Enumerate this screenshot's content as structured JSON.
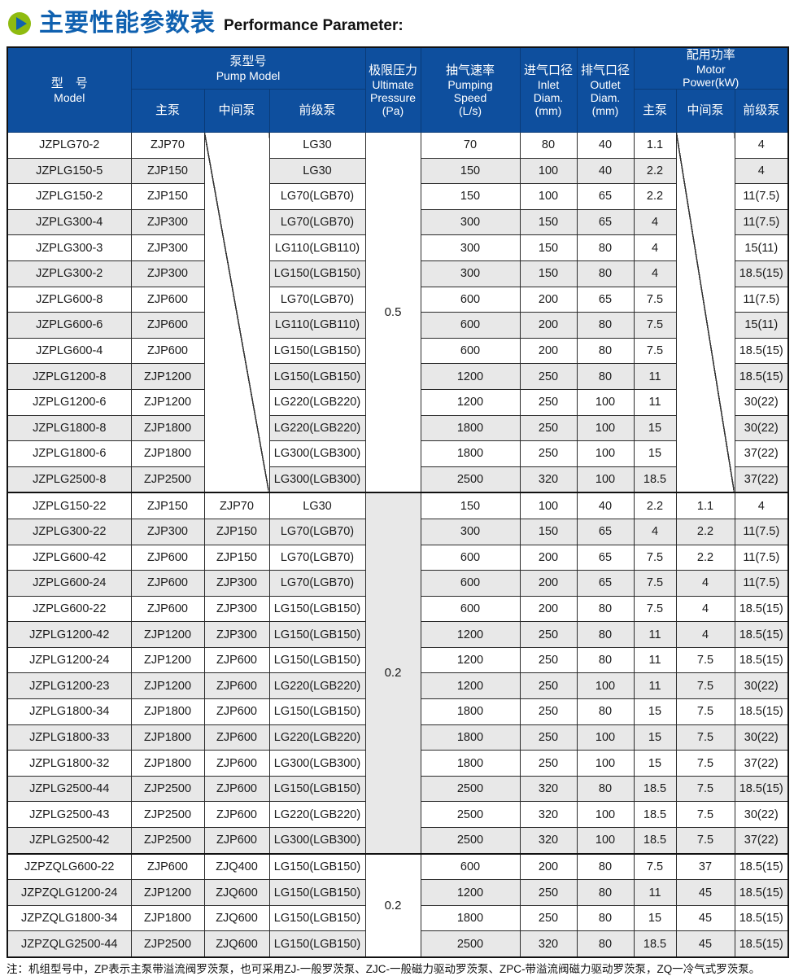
{
  "title": {
    "zh": "主要性能参数表",
    "en": "Performance Parameter:"
  },
  "colors": {
    "header_bg": "#0E4F9E",
    "row_alt": "#E8E8E8",
    "border": "#1A1A1A",
    "title_blue": "#1061B0",
    "icon_green": "#8FBB10"
  },
  "header": {
    "model": {
      "zh": "型　号",
      "en": "Model"
    },
    "pump_model": {
      "zh": "泵型号",
      "en": "Pump Model",
      "sub": [
        "主泵",
        "中间泵",
        "前级泵"
      ]
    },
    "ultimate_pressure": {
      "zh": "极限压力",
      "en_lines": [
        "Ultimate",
        "Pressure"
      ],
      "unit": "(Pa)"
    },
    "pumping_speed": {
      "zh": "抽气速率",
      "en_lines": [
        "Pumping",
        "Speed"
      ],
      "unit": "(L/s)"
    },
    "inlet": {
      "zh": "进气口径",
      "en_lines": [
        "Inlet",
        "Diam."
      ],
      "unit": "(mm)"
    },
    "outlet": {
      "zh": "排气口径",
      "en_lines": [
        "Outlet",
        "Diam."
      ],
      "unit": "(mm)"
    },
    "motor_power": {
      "zh": "配用功率",
      "en_lines": [
        "Motor",
        "Power(kW)"
      ],
      "sub": [
        "主泵",
        "中间泵",
        "前级泵"
      ]
    }
  },
  "groups": [
    {
      "pressure": "0.5",
      "pressure_shaded": false,
      "mid_pump_blank": true,
      "rows": [
        {
          "model": "JZPLG70-2",
          "main": "ZJP70",
          "fore": "LG30",
          "speed": "70",
          "inlet": "80",
          "outlet": "40",
          "p_main": "1.1",
          "p_fore": "4"
        },
        {
          "model": "JZPLG150-5",
          "main": "ZJP150",
          "fore": "LG30",
          "speed": "150",
          "inlet": "100",
          "outlet": "40",
          "p_main": "2.2",
          "p_fore": "4"
        },
        {
          "model": "JZPLG150-2",
          "main": "ZJP150",
          "fore": "LG70(LGB70)",
          "speed": "150",
          "inlet": "100",
          "outlet": "65",
          "p_main": "2.2",
          "p_fore": "11(7.5)"
        },
        {
          "model": "JZPLG300-4",
          "main": "ZJP300",
          "fore": "LG70(LGB70)",
          "speed": "300",
          "inlet": "150",
          "outlet": "65",
          "p_main": "4",
          "p_fore": "11(7.5)"
        },
        {
          "model": "JZPLG300-3",
          "main": "ZJP300",
          "fore": "LG110(LGB110)",
          "speed": "300",
          "inlet": "150",
          "outlet": "80",
          "p_main": "4",
          "p_fore": "15(11)"
        },
        {
          "model": "JZPLG300-2",
          "main": "ZJP300",
          "fore": "LG150(LGB150)",
          "speed": "300",
          "inlet": "150",
          "outlet": "80",
          "p_main": "4",
          "p_fore": "18.5(15)"
        },
        {
          "model": "JZPLG600-8",
          "main": "ZJP600",
          "fore": "LG70(LGB70)",
          "speed": "600",
          "inlet": "200",
          "outlet": "65",
          "p_main": "7.5",
          "p_fore": "11(7.5)"
        },
        {
          "model": "JZPLG600-6",
          "main": "ZJP600",
          "fore": "LG110(LGB110)",
          "speed": "600",
          "inlet": "200",
          "outlet": "80",
          "p_main": "7.5",
          "p_fore": "15(11)"
        },
        {
          "model": "JZPLG600-4",
          "main": "ZJP600",
          "fore": "LG150(LGB150)",
          "speed": "600",
          "inlet": "200",
          "outlet": "80",
          "p_main": "7.5",
          "p_fore": "18.5(15)"
        },
        {
          "model": "JZPLG1200-8",
          "main": "ZJP1200",
          "fore": "LG150(LGB150)",
          "speed": "1200",
          "inlet": "250",
          "outlet": "80",
          "p_main": "11",
          "p_fore": "18.5(15)"
        },
        {
          "model": "JZPLG1200-6",
          "main": "ZJP1200",
          "fore": "LG220(LGB220)",
          "speed": "1200",
          "inlet": "250",
          "outlet": "100",
          "p_main": "11",
          "p_fore": "30(22)"
        },
        {
          "model": "JZPLG1800-8",
          "main": "ZJP1800",
          "fore": "LG220(LGB220)",
          "speed": "1800",
          "inlet": "250",
          "outlet": "100",
          "p_main": "15",
          "p_fore": "30(22)"
        },
        {
          "model": "JZPLG1800-6",
          "main": "ZJP1800",
          "fore": "LG300(LGB300)",
          "speed": "1800",
          "inlet": "250",
          "outlet": "100",
          "p_main": "15",
          "p_fore": "37(22)"
        },
        {
          "model": "JZPLG2500-8",
          "main": "ZJP2500",
          "fore": "LG300(LGB300)",
          "speed": "2500",
          "inlet": "320",
          "outlet": "100",
          "p_main": "18.5",
          "p_fore": "37(22)"
        }
      ]
    },
    {
      "pressure": "0.2",
      "pressure_shaded": true,
      "mid_pump_blank": false,
      "rows": [
        {
          "model": "JZPLG150-22",
          "main": "ZJP150",
          "mid": "ZJP70",
          "fore": "LG30",
          "speed": "150",
          "inlet": "100",
          "outlet": "40",
          "p_main": "2.2",
          "p_mid": "1.1",
          "p_fore": "4"
        },
        {
          "model": "JZPLG300-22",
          "main": "ZJP300",
          "mid": "ZJP150",
          "fore": "LG70(LGB70)",
          "speed": "300",
          "inlet": "150",
          "outlet": "65",
          "p_main": "4",
          "p_mid": "2.2",
          "p_fore": "11(7.5)"
        },
        {
          "model": "JZPLG600-42",
          "main": "ZJP600",
          "mid": "ZJP150",
          "fore": "LG70(LGB70)",
          "speed": "600",
          "inlet": "200",
          "outlet": "65",
          "p_main": "7.5",
          "p_mid": "2.2",
          "p_fore": "11(7.5)"
        },
        {
          "model": "JZPLG600-24",
          "main": "ZJP600",
          "mid": "ZJP300",
          "fore": "LG70(LGB70)",
          "speed": "600",
          "inlet": "200",
          "outlet": "65",
          "p_main": "7.5",
          "p_mid": "4",
          "p_fore": "11(7.5)"
        },
        {
          "model": "JZPLG600-22",
          "main": "ZJP600",
          "mid": "ZJP300",
          "fore": "LG150(LGB150)",
          "speed": "600",
          "inlet": "200",
          "outlet": "80",
          "p_main": "7.5",
          "p_mid": "4",
          "p_fore": "18.5(15)"
        },
        {
          "model": "JZPLG1200-42",
          "main": "ZJP1200",
          "mid": "ZJP300",
          "fore": "LG150(LGB150)",
          "speed": "1200",
          "inlet": "250",
          "outlet": "80",
          "p_main": "11",
          "p_mid": "4",
          "p_fore": "18.5(15)"
        },
        {
          "model": "JZPLG1200-24",
          "main": "ZJP1200",
          "mid": "ZJP600",
          "fore": "LG150(LGB150)",
          "speed": "1200",
          "inlet": "250",
          "outlet": "80",
          "p_main": "11",
          "p_mid": "7.5",
          "p_fore": "18.5(15)"
        },
        {
          "model": "JZPLG1200-23",
          "main": "ZJP1200",
          "mid": "ZJP600",
          "fore": "LG220(LGB220)",
          "speed": "1200",
          "inlet": "250",
          "outlet": "100",
          "p_main": "11",
          "p_mid": "7.5",
          "p_fore": "30(22)"
        },
        {
          "model": "JZPLG1800-34",
          "main": "ZJP1800",
          "mid": "ZJP600",
          "fore": "LG150(LGB150)",
          "speed": "1800",
          "inlet": "250",
          "outlet": "80",
          "p_main": "15",
          "p_mid": "7.5",
          "p_fore": "18.5(15)"
        },
        {
          "model": "JZPLG1800-33",
          "main": "ZJP1800",
          "mid": "ZJP600",
          "fore": "LG220(LGB220)",
          "speed": "1800",
          "inlet": "250",
          "outlet": "100",
          "p_main": "15",
          "p_mid": "7.5",
          "p_fore": "30(22)"
        },
        {
          "model": "JZPLG1800-32",
          "main": "ZJP1800",
          "mid": "ZJP600",
          "fore": "LG300(LGB300)",
          "speed": "1800",
          "inlet": "250",
          "outlet": "100",
          "p_main": "15",
          "p_mid": "7.5",
          "p_fore": "37(22)"
        },
        {
          "model": "JZPLG2500-44",
          "main": "ZJP2500",
          "mid": "ZJP600",
          "fore": "LG150(LGB150)",
          "speed": "2500",
          "inlet": "320",
          "outlet": "80",
          "p_main": "18.5",
          "p_mid": "7.5",
          "p_fore": "18.5(15)"
        },
        {
          "model": "JZPLG2500-43",
          "main": "ZJP2500",
          "mid": "ZJP600",
          "fore": "LG220(LGB220)",
          "speed": "2500",
          "inlet": "320",
          "outlet": "100",
          "p_main": "18.5",
          "p_mid": "7.5",
          "p_fore": "30(22)"
        },
        {
          "model": "JZPLG2500-42",
          "main": "ZJP2500",
          "mid": "ZJP600",
          "fore": "LG300(LGB300)",
          "speed": "2500",
          "inlet": "320",
          "outlet": "100",
          "p_main": "18.5",
          "p_mid": "7.5",
          "p_fore": "37(22)"
        }
      ]
    },
    {
      "pressure": "0.2",
      "pressure_shaded": false,
      "mid_pump_blank": false,
      "rows": [
        {
          "model": "JZPZQLG600-22",
          "main": "ZJP600",
          "mid": "ZJQ400",
          "fore": "LG150(LGB150)",
          "speed": "600",
          "inlet": "200",
          "outlet": "80",
          "p_main": "7.5",
          "p_mid": "37",
          "p_fore": "18.5(15)"
        },
        {
          "model": "JZPZQLG1200-24",
          "main": "ZJP1200",
          "mid": "ZJQ600",
          "fore": "LG150(LGB150)",
          "speed": "1200",
          "inlet": "250",
          "outlet": "80",
          "p_main": "11",
          "p_mid": "45",
          "p_fore": "18.5(15)"
        },
        {
          "model": "JZPZQLG1800-34",
          "main": "ZJP1800",
          "mid": "ZJQ600",
          "fore": "LG150(LGB150)",
          "speed": "1800",
          "inlet": "250",
          "outlet": "80",
          "p_main": "15",
          "p_mid": "45",
          "p_fore": "18.5(15)"
        },
        {
          "model": "JZPZQLG2500-44",
          "main": "ZJP2500",
          "mid": "ZJQ600",
          "fore": "LG150(LGB150)",
          "speed": "2500",
          "inlet": "320",
          "outlet": "80",
          "p_main": "18.5",
          "p_mid": "45",
          "p_fore": "18.5(15)"
        }
      ]
    }
  ],
  "note": "注：机组型号中，ZP表示主泵带溢流阀罗茨泵，也可采用ZJ-一般罗茨泵、ZJC-一般磁力驱动罗茨泵、ZPC-带溢流阀磁力驱动罗茨泵，ZQ一冷气式罗茨泵。"
}
